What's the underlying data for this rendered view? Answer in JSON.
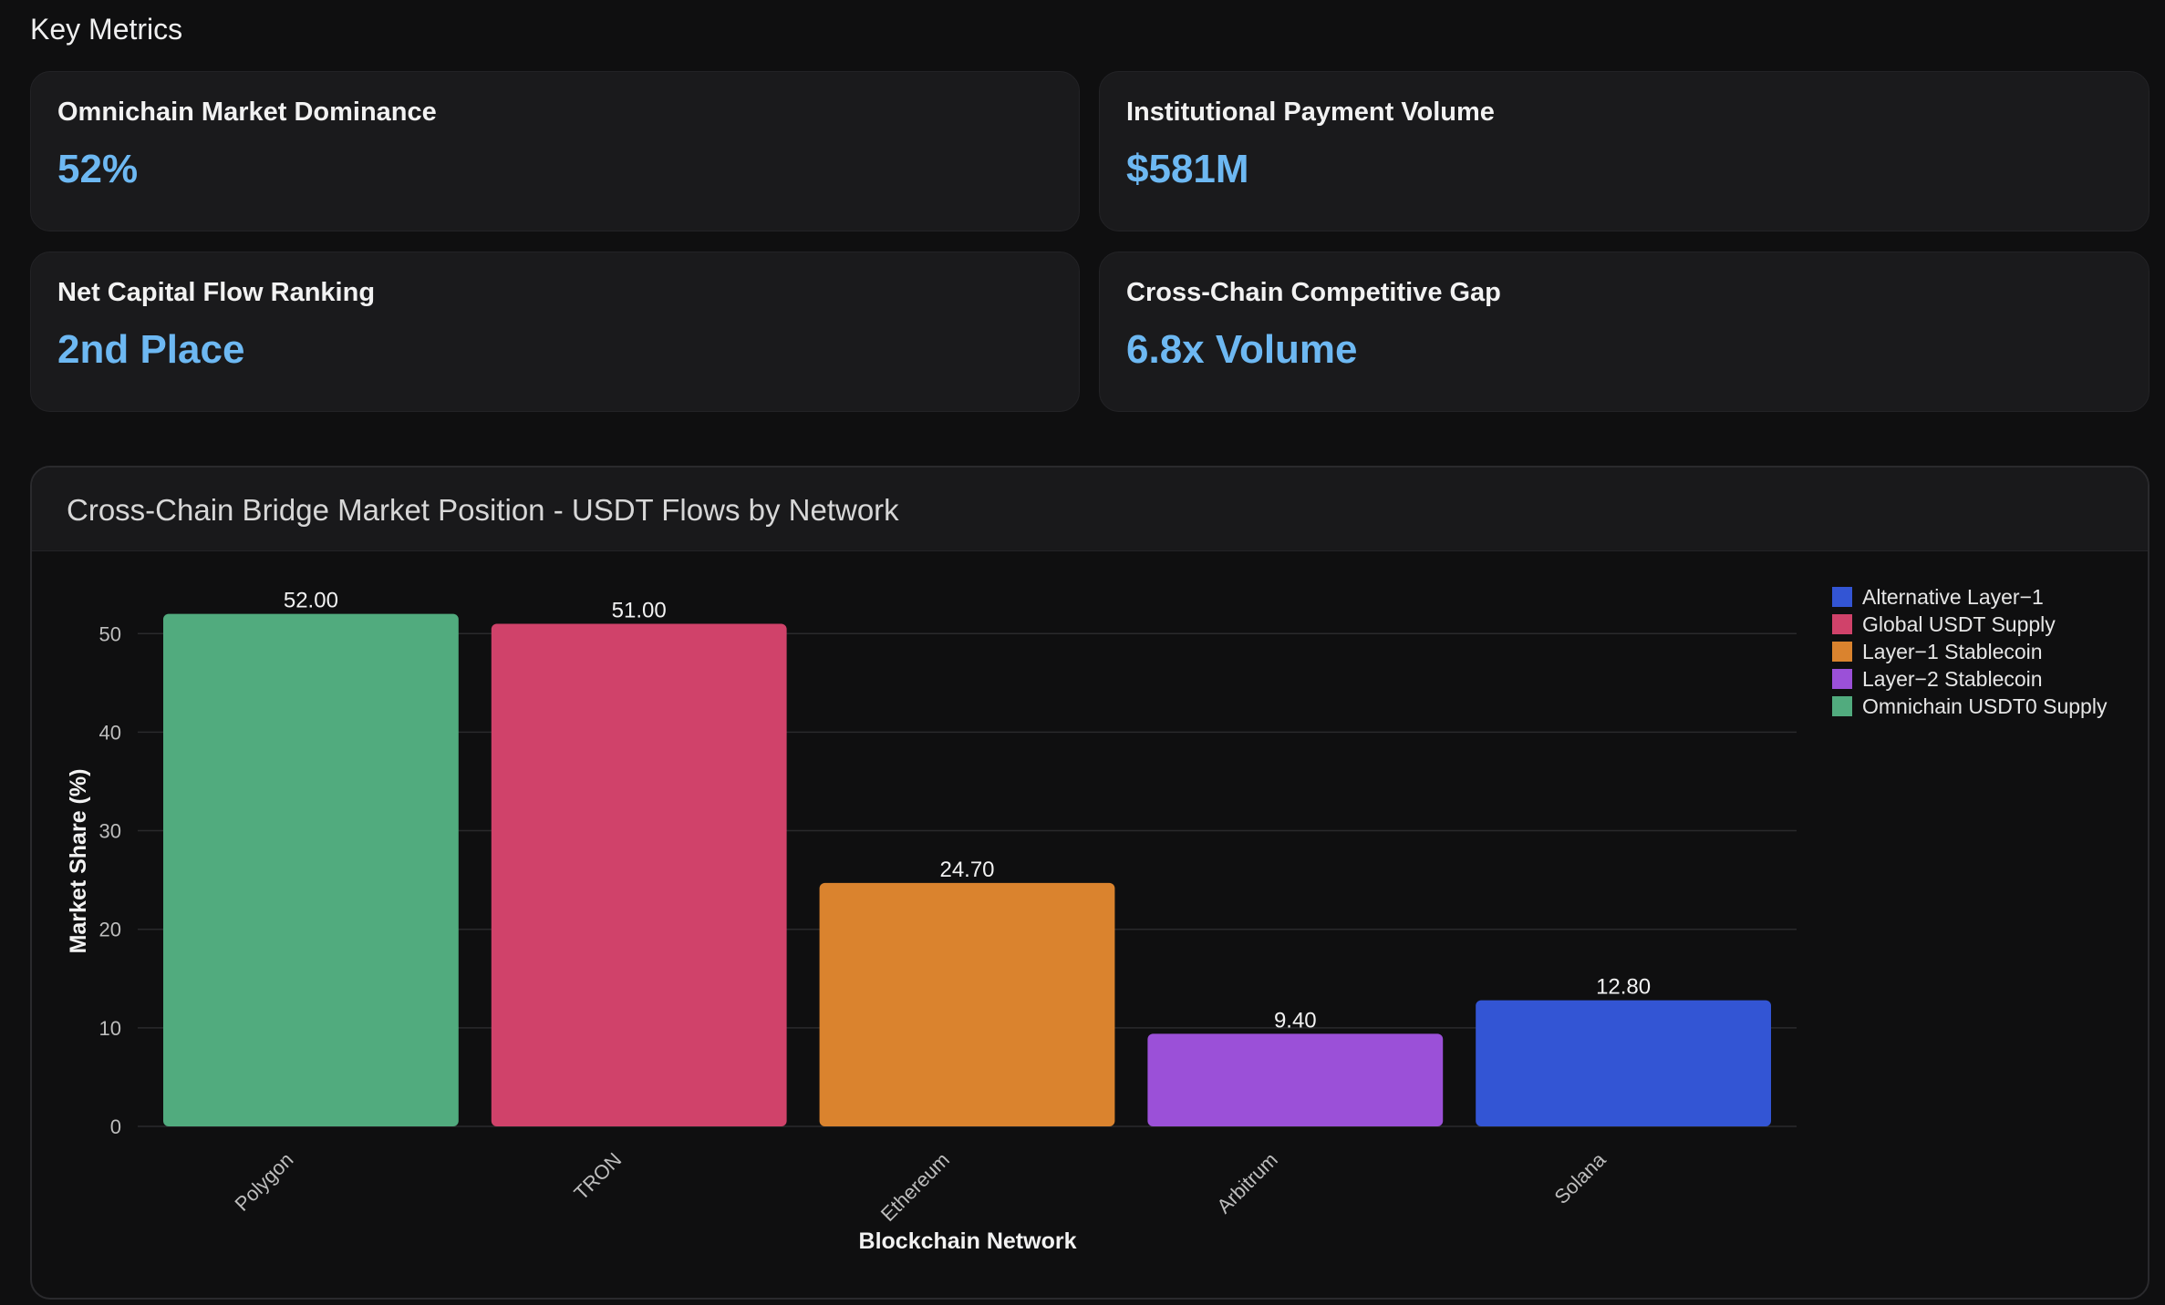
{
  "section_title": "Key Metrics",
  "metrics": [
    {
      "label": "Omnichain Market Dominance",
      "value": "52%"
    },
    {
      "label": "Institutional Payment Volume",
      "value": "$581M"
    },
    {
      "label": "Net Capital Flow Ranking",
      "value": "2nd Place"
    },
    {
      "label": "Cross-Chain Competitive Gap",
      "value": "6.8x Volume"
    }
  ],
  "colors": {
    "accent": "#6db8f2",
    "Alternative Layer−1": "#3355d4",
    "Global USDT Supply": "#d0426a",
    "Layer−1 Stablecoin": "#da832e",
    "Layer−2 Stablecoin": "#9b50d8",
    "Omnichain USDT0 Supply": "#51ab7e"
  },
  "chart_data": {
    "type": "bar",
    "title": "Cross-Chain Bridge Market Position - USDT Flows by Network",
    "xlabel": "Blockchain Network",
    "ylabel": "Market Share (%)",
    "ylim": [
      0,
      54
    ],
    "yticks": [
      0,
      10,
      20,
      30,
      40,
      50
    ],
    "grid": true,
    "legend_position": "top-right",
    "categories": [
      "Polygon",
      "TRON",
      "Ethereum",
      "Arbitrum",
      "Solana"
    ],
    "values": [
      52.0,
      51.0,
      24.7,
      9.4,
      12.8
    ],
    "value_labels": [
      "52.00",
      "51.00",
      "24.70",
      "9.40",
      "12.80"
    ],
    "bar_groups": [
      "Omnichain USDT0 Supply",
      "Global USDT Supply",
      "Layer−1 Stablecoin",
      "Layer−2 Stablecoin",
      "Alternative Layer−1"
    ],
    "legend": [
      "Alternative Layer−1",
      "Global USDT Supply",
      "Layer−1 Stablecoin",
      "Layer−2 Stablecoin",
      "Omnichain USDT0 Supply"
    ]
  }
}
